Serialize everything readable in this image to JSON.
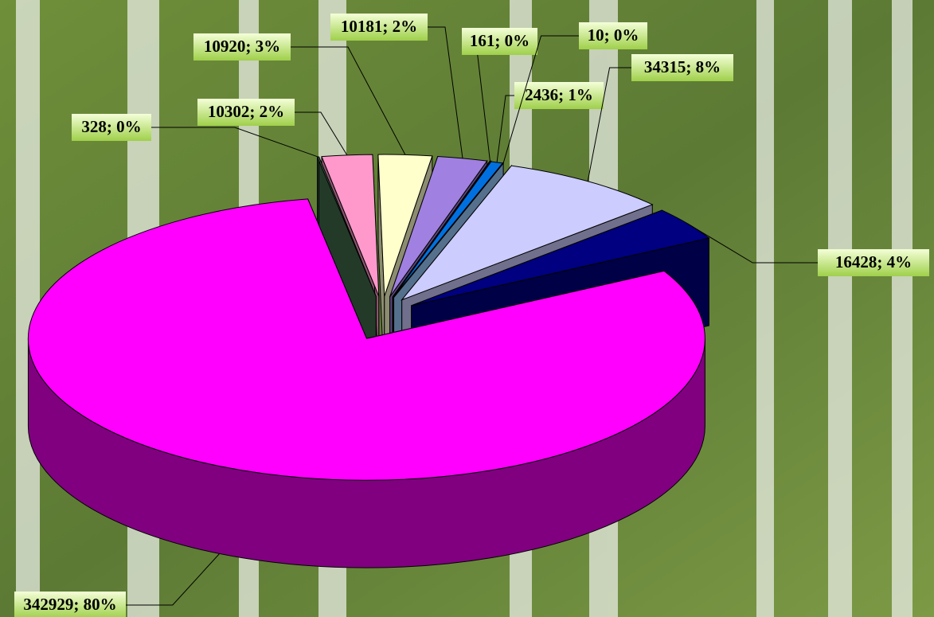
{
  "chart_data": {
    "type": "pie3d",
    "values": [
      328,
      10302,
      10920,
      10181,
      161,
      2436,
      10,
      34315,
      16428,
      342929
    ],
    "value_labels": [
      "328; 0%",
      "10302; 2%",
      "10920; 3%",
      "10181; 2%",
      "161; 0%",
      "2436; 1%",
      "10; 0%",
      "34315; 8%",
      "16428; 4%",
      "342929; 80%"
    ],
    "colors": [
      "#3f6a4a",
      "#ff99cc",
      "#ffffcc",
      "#a080e0",
      "#660066",
      "#0070e0",
      "#99ccff",
      "#ccccff",
      "#000080",
      "#ff00ff"
    ]
  }
}
